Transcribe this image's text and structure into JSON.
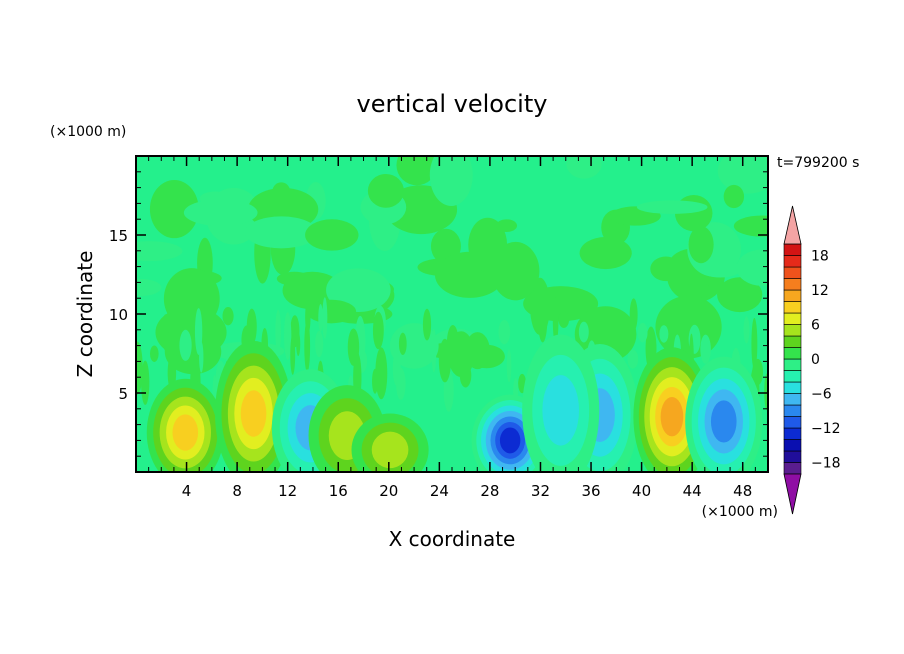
{
  "chart_data": {
    "type": "heatmap",
    "subtype": "filled-contour",
    "title": "vertical velocity",
    "xlabel": "X coordinate",
    "ylabel": "Z coordinate",
    "x_unit": "(×1000 m)",
    "y_unit": "(×1000 m)",
    "time_label": "t=799200 s",
    "xlim": [
      0,
      50
    ],
    "ylim": [
      0,
      20
    ],
    "x_ticks": [
      4,
      8,
      12,
      16,
      20,
      24,
      28,
      32,
      36,
      40,
      44,
      48
    ],
    "y_ticks": [
      5,
      10,
      15
    ],
    "colorbar": {
      "levels": [
        -20,
        -18,
        -16,
        -14,
        -12,
        -10,
        -8,
        -6,
        -4,
        -2,
        0,
        2,
        4,
        6,
        8,
        10,
        12,
        14,
        16,
        18,
        20
      ],
      "tick_labels": [
        18,
        12,
        6,
        0,
        -6,
        -12,
        -18
      ],
      "colors": [
        "#5a1d8f",
        "#200e9a",
        "#0a0fb0",
        "#0c2bd2",
        "#1f5ae8",
        "#2a88ee",
        "#3fb7f1",
        "#29e0df",
        "#26f0b0",
        "#2eef86",
        "#34e34c",
        "#5ed41e",
        "#a6e41d",
        "#e2ee20",
        "#f8cf20",
        "#f6a71f",
        "#f57e1e",
        "#ef521c",
        "#e52a1a",
        "#d31414"
      ],
      "under_color": "#8f0ea4",
      "over_color": "#f4a4a4"
    },
    "background_color": "#24f08c",
    "features": [
      {
        "x": 3.9,
        "z": 2.5,
        "value": 10
      },
      {
        "x": 9.3,
        "z": 3.7,
        "value": 9
      },
      {
        "x": 13.8,
        "z": 2.8,
        "value": -8
      },
      {
        "x": 16.7,
        "z": 2.3,
        "value": 5
      },
      {
        "x": 20.1,
        "z": 1.4,
        "value": 6
      },
      {
        "x": 29.6,
        "z": 2.0,
        "value": -13
      },
      {
        "x": 36.7,
        "z": 3.6,
        "value": -8
      },
      {
        "x": 33.6,
        "z": 3.9,
        "value": -6
      },
      {
        "x": 42.4,
        "z": 3.5,
        "value": 11
      },
      {
        "x": 46.5,
        "z": 3.2,
        "value": -9
      }
    ]
  }
}
